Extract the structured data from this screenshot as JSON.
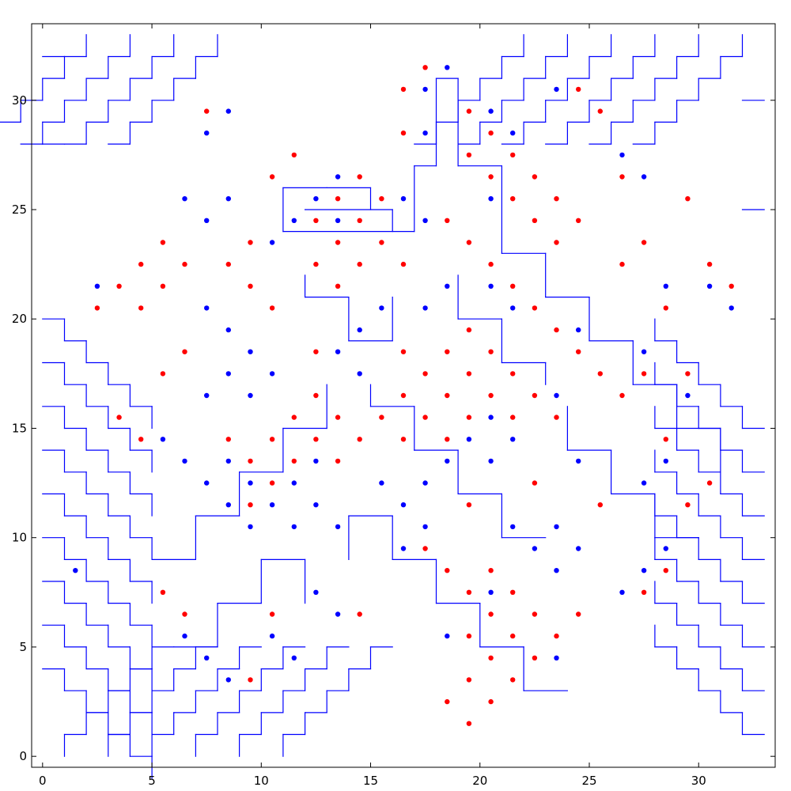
{
  "chart_data": {
    "type": "scatter",
    "title": "",
    "xlabel": "",
    "ylabel": "",
    "xlim": [
      -0.5,
      33.5
    ],
    "ylim": [
      -0.5,
      33.5
    ],
    "grid": false,
    "x_ticks": [
      {
        "value": 0,
        "label": "0"
      },
      {
        "value": 5,
        "label": "5"
      },
      {
        "value": 10,
        "label": "10"
      },
      {
        "value": 15,
        "label": "15"
      },
      {
        "value": 20,
        "label": "20"
      },
      {
        "value": 25,
        "label": "25"
      },
      {
        "value": 30,
        "label": "30"
      }
    ],
    "y_ticks": [
      {
        "value": 0,
        "label": "0"
      },
      {
        "value": 5,
        "label": "5"
      },
      {
        "value": 10,
        "label": "10"
      },
      {
        "value": 15,
        "label": "15"
      },
      {
        "value": 20,
        "label": "20"
      },
      {
        "value": 25,
        "label": "25"
      },
      {
        "value": 30,
        "label": "30"
      }
    ],
    "line_color": "#0000ff",
    "maze_lines": {
      "staircase_bottom_left": {
        "x_starts": [
          1,
          3,
          5,
          7,
          9,
          11
        ],
        "steps": 5
      },
      "staircase_right": {
        "y_starts": [
          1,
          3,
          5,
          7,
          9,
          11,
          13,
          15
        ],
        "steps": 5
      },
      "staircase_left": {
        "y_starts": [
          4,
          6,
          8,
          10,
          12,
          14,
          16,
          18,
          20
        ],
        "steps": 5
      },
      "staircase_top": {
        "x_starts": [
          2,
          4,
          6,
          8,
          22,
          24,
          26,
          28,
          30,
          32
        ],
        "steps": 5
      }
    },
    "series": [
      {
        "color": "#ff0000",
        "points": [
          [
            17.5,
            31.5
          ],
          [
            16.5,
            30.5
          ],
          [
            24.5,
            30.5
          ],
          [
            7.5,
            29.5
          ],
          [
            19.5,
            29.5
          ],
          [
            25.5,
            29.5
          ],
          [
            16.5,
            28.5
          ],
          [
            20.5,
            28.5
          ],
          [
            11.5,
            27.5
          ],
          [
            19.5,
            27.5
          ],
          [
            21.5,
            27.5
          ],
          [
            10.5,
            26.5
          ],
          [
            14.5,
            26.5
          ],
          [
            20.5,
            26.5
          ],
          [
            22.5,
            26.5
          ],
          [
            26.5,
            26.5
          ],
          [
            13.5,
            25.5
          ],
          [
            15.5,
            25.5
          ],
          [
            21.5,
            25.5
          ],
          [
            23.5,
            25.5
          ],
          [
            29.5,
            25.5
          ],
          [
            12.5,
            24.5
          ],
          [
            14.5,
            24.5
          ],
          [
            18.5,
            24.5
          ],
          [
            22.5,
            24.5
          ],
          [
            24.5,
            24.5
          ],
          [
            5.5,
            23.5
          ],
          [
            9.5,
            23.5
          ],
          [
            13.5,
            23.5
          ],
          [
            15.5,
            23.5
          ],
          [
            19.5,
            23.5
          ],
          [
            23.5,
            23.5
          ],
          [
            27.5,
            23.5
          ],
          [
            4.5,
            22.5
          ],
          [
            6.5,
            22.5
          ],
          [
            8.5,
            22.5
          ],
          [
            12.5,
            22.5
          ],
          [
            14.5,
            22.5
          ],
          [
            16.5,
            22.5
          ],
          [
            20.5,
            22.5
          ],
          [
            26.5,
            22.5
          ],
          [
            30.5,
            22.5
          ],
          [
            3.5,
            21.5
          ],
          [
            5.5,
            21.5
          ],
          [
            9.5,
            21.5
          ],
          [
            13.5,
            21.5
          ],
          [
            21.5,
            21.5
          ],
          [
            31.5,
            21.5
          ],
          [
            2.5,
            20.5
          ],
          [
            4.5,
            20.5
          ],
          [
            10.5,
            20.5
          ],
          [
            22.5,
            20.5
          ],
          [
            28.5,
            20.5
          ],
          [
            19.5,
            19.5
          ],
          [
            23.5,
            19.5
          ],
          [
            6.5,
            18.5
          ],
          [
            12.5,
            18.5
          ],
          [
            16.5,
            18.5
          ],
          [
            18.5,
            18.5
          ],
          [
            20.5,
            18.5
          ],
          [
            24.5,
            18.5
          ],
          [
            5.5,
            17.5
          ],
          [
            17.5,
            17.5
          ],
          [
            19.5,
            17.5
          ],
          [
            21.5,
            17.5
          ],
          [
            25.5,
            17.5
          ],
          [
            27.5,
            17.5
          ],
          [
            29.5,
            17.5
          ],
          [
            12.5,
            16.5
          ],
          [
            16.5,
            16.5
          ],
          [
            18.5,
            16.5
          ],
          [
            20.5,
            16.5
          ],
          [
            22.5,
            16.5
          ],
          [
            26.5,
            16.5
          ],
          [
            3.5,
            15.5
          ],
          [
            11.5,
            15.5
          ],
          [
            13.5,
            15.5
          ],
          [
            15.5,
            15.5
          ],
          [
            17.5,
            15.5
          ],
          [
            19.5,
            15.5
          ],
          [
            21.5,
            15.5
          ],
          [
            23.5,
            15.5
          ],
          [
            4.5,
            14.5
          ],
          [
            8.5,
            14.5
          ],
          [
            10.5,
            14.5
          ],
          [
            12.5,
            14.5
          ],
          [
            14.5,
            14.5
          ],
          [
            16.5,
            14.5
          ],
          [
            18.5,
            14.5
          ],
          [
            28.5,
            14.5
          ],
          [
            9.5,
            13.5
          ],
          [
            11.5,
            13.5
          ],
          [
            13.5,
            13.5
          ],
          [
            10.5,
            12.5
          ],
          [
            22.5,
            12.5
          ],
          [
            30.5,
            12.5
          ],
          [
            9.5,
            11.5
          ],
          [
            19.5,
            11.5
          ],
          [
            25.5,
            11.5
          ],
          [
            29.5,
            11.5
          ],
          [
            17.5,
            9.5
          ],
          [
            18.5,
            8.5
          ],
          [
            20.5,
            8.5
          ],
          [
            28.5,
            8.5
          ],
          [
            5.5,
            7.5
          ],
          [
            19.5,
            7.5
          ],
          [
            21.5,
            7.5
          ],
          [
            27.5,
            7.5
          ],
          [
            6.5,
            6.5
          ],
          [
            10.5,
            6.5
          ],
          [
            14.5,
            6.5
          ],
          [
            20.5,
            6.5
          ],
          [
            22.5,
            6.5
          ],
          [
            24.5,
            6.5
          ],
          [
            19.5,
            5.5
          ],
          [
            21.5,
            5.5
          ],
          [
            23.5,
            5.5
          ],
          [
            20.5,
            4.5
          ],
          [
            22.5,
            4.5
          ],
          [
            9.5,
            3.5
          ],
          [
            19.5,
            3.5
          ],
          [
            21.5,
            3.5
          ],
          [
            18.5,
            2.5
          ],
          [
            20.5,
            2.5
          ],
          [
            19.5,
            1.5
          ]
        ]
      },
      {
        "color": "#0000ff",
        "points": [
          [
            18.5,
            31.5
          ],
          [
            17.5,
            30.5
          ],
          [
            23.5,
            30.5
          ],
          [
            8.5,
            29.5
          ],
          [
            20.5,
            29.5
          ],
          [
            7.5,
            28.5
          ],
          [
            17.5,
            28.5
          ],
          [
            21.5,
            28.5
          ],
          [
            26.5,
            27.5
          ],
          [
            13.5,
            26.5
          ],
          [
            27.5,
            26.5
          ],
          [
            6.5,
            25.5
          ],
          [
            8.5,
            25.5
          ],
          [
            12.5,
            25.5
          ],
          [
            16.5,
            25.5
          ],
          [
            20.5,
            25.5
          ],
          [
            7.5,
            24.5
          ],
          [
            11.5,
            24.5
          ],
          [
            13.5,
            24.5
          ],
          [
            17.5,
            24.5
          ],
          [
            10.5,
            23.5
          ],
          [
            2.5,
            21.5
          ],
          [
            18.5,
            21.5
          ],
          [
            20.5,
            21.5
          ],
          [
            28.5,
            21.5
          ],
          [
            30.5,
            21.5
          ],
          [
            7.5,
            20.5
          ],
          [
            15.5,
            20.5
          ],
          [
            17.5,
            20.5
          ],
          [
            21.5,
            20.5
          ],
          [
            31.5,
            20.5
          ],
          [
            8.5,
            19.5
          ],
          [
            14.5,
            19.5
          ],
          [
            24.5,
            19.5
          ],
          [
            9.5,
            18.5
          ],
          [
            13.5,
            18.5
          ],
          [
            27.5,
            18.5
          ],
          [
            8.5,
            17.5
          ],
          [
            10.5,
            17.5
          ],
          [
            14.5,
            17.5
          ],
          [
            7.5,
            16.5
          ],
          [
            9.5,
            16.5
          ],
          [
            23.5,
            16.5
          ],
          [
            29.5,
            16.5
          ],
          [
            20.5,
            15.5
          ],
          [
            5.5,
            14.5
          ],
          [
            19.5,
            14.5
          ],
          [
            21.5,
            14.5
          ],
          [
            6.5,
            13.5
          ],
          [
            8.5,
            13.5
          ],
          [
            12.5,
            13.5
          ],
          [
            18.5,
            13.5
          ],
          [
            20.5,
            13.5
          ],
          [
            24.5,
            13.5
          ],
          [
            28.5,
            13.5
          ],
          [
            7.5,
            12.5
          ],
          [
            9.5,
            12.5
          ],
          [
            11.5,
            12.5
          ],
          [
            15.5,
            12.5
          ],
          [
            17.5,
            12.5
          ],
          [
            27.5,
            12.5
          ],
          [
            8.5,
            11.5
          ],
          [
            10.5,
            11.5
          ],
          [
            12.5,
            11.5
          ],
          [
            16.5,
            11.5
          ],
          [
            9.5,
            10.5
          ],
          [
            11.5,
            10.5
          ],
          [
            13.5,
            10.5
          ],
          [
            17.5,
            10.5
          ],
          [
            21.5,
            10.5
          ],
          [
            23.5,
            10.5
          ],
          [
            16.5,
            9.5
          ],
          [
            22.5,
            9.5
          ],
          [
            24.5,
            9.5
          ],
          [
            28.5,
            9.5
          ],
          [
            1.5,
            8.5
          ],
          [
            23.5,
            8.5
          ],
          [
            27.5,
            8.5
          ],
          [
            12.5,
            7.5
          ],
          [
            20.5,
            7.5
          ],
          [
            26.5,
            7.5
          ],
          [
            13.5,
            6.5
          ],
          [
            6.5,
            5.5
          ],
          [
            10.5,
            5.5
          ],
          [
            18.5,
            5.5
          ],
          [
            7.5,
            4.5
          ],
          [
            11.5,
            4.5
          ],
          [
            23.5,
            4.5
          ],
          [
            8.5,
            3.5
          ]
        ]
      }
    ]
  }
}
